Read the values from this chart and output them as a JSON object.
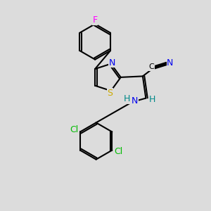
{
  "bg_color": "#dcdcdc",
  "bond_color": "#000000",
  "atom_colors": {
    "F": "#ff00ff",
    "N": "#0000ee",
    "S": "#ccaa00",
    "Cl": "#00bb00",
    "C": "#000000",
    "H": "#008888"
  },
  "font_size": 9,
  "fig_size": [
    3.0,
    3.0
  ],
  "dpi": 100
}
